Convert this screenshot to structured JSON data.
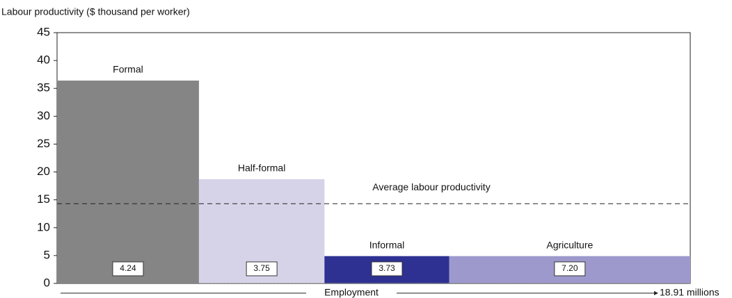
{
  "chart_data": {
    "type": "variable-width-bar",
    "y_axis_label": "Labour productivity ($ thousand per worker)",
    "x_axis_label": "Employment",
    "x_end_label": "18.91 millions",
    "categories": [
      "Formal",
      "Half-formal",
      "Informal",
      "Agriculture"
    ],
    "values": [
      36.4,
      18.7,
      4.9,
      4.9
    ],
    "widths": [
      4.24,
      3.75,
      3.73,
      7.2
    ],
    "width_labels": [
      "4.24",
      "3.75",
      "3.73",
      "7.20"
    ],
    "colors": [
      "#858585",
      "#d6d3e9",
      "#2e3192",
      "#9d99cc"
    ],
    "average": {
      "label": "Average labour productivity",
      "value": 14.3
    },
    "ylim": [
      0,
      45
    ],
    "yticks": [
      0,
      5,
      10,
      15,
      20,
      25,
      30,
      35,
      40,
      45
    ]
  }
}
